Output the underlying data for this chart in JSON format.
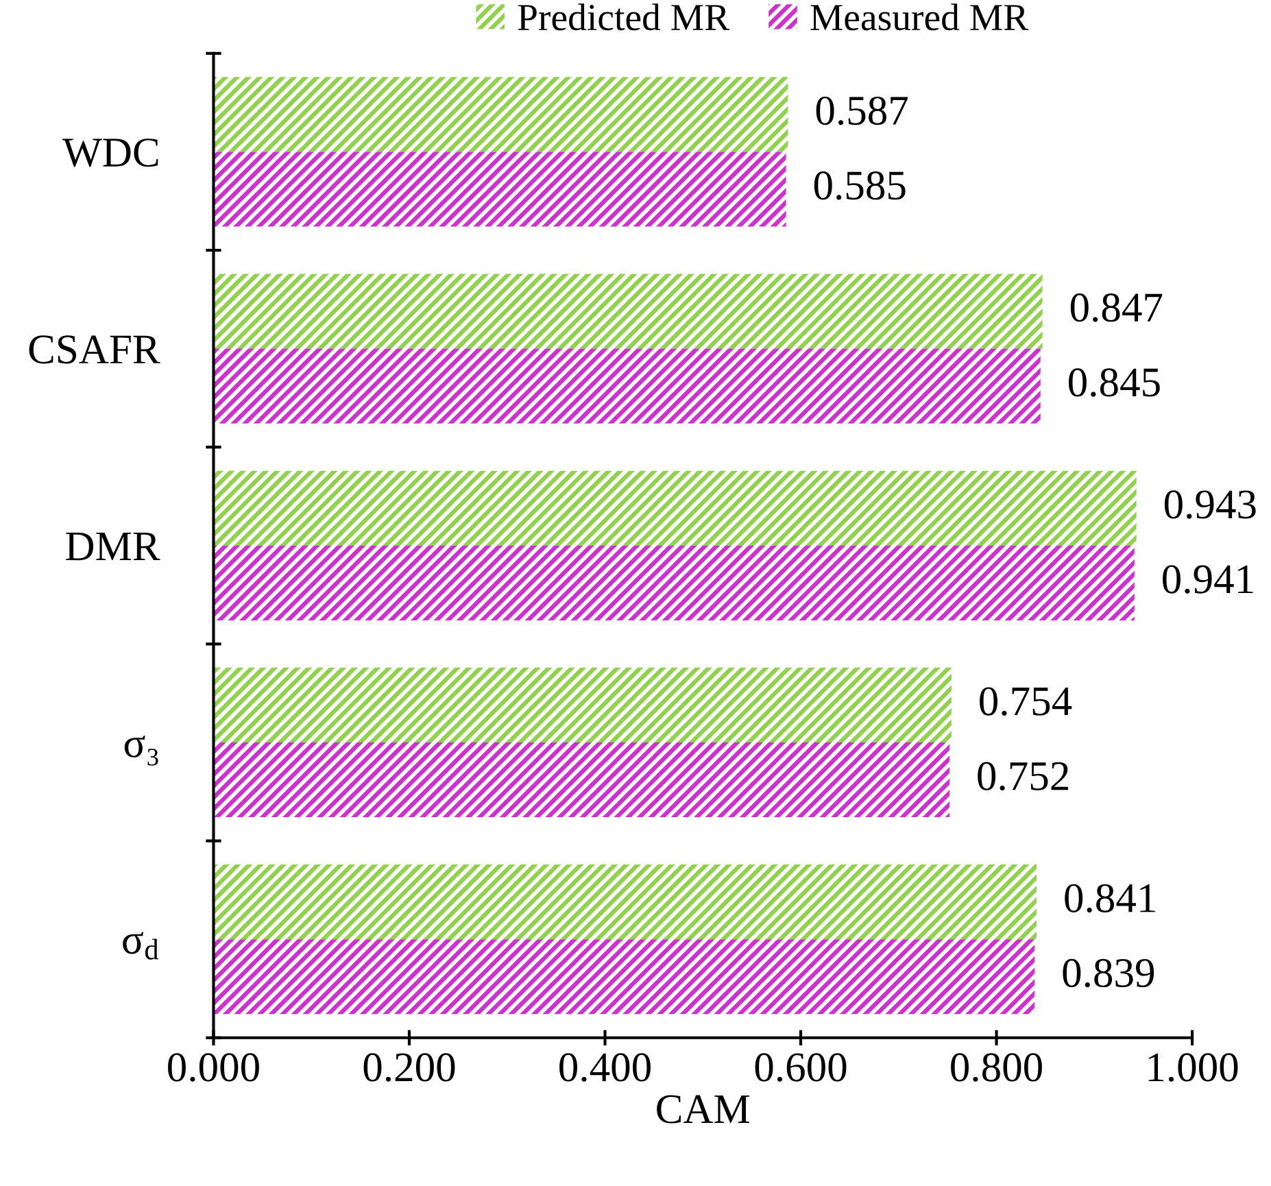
{
  "chart_data": {
    "type": "bar",
    "orientation": "horizontal",
    "xlabel": "CAM",
    "categories": [
      "WDC",
      "CSAFR",
      "DMR",
      "σ₃",
      "σ$_{d}$"
    ],
    "series": [
      {
        "name": "Predicted MR",
        "color": "#92d050",
        "values": [
          0.587,
          0.847,
          0.943,
          0.754,
          0.841
        ]
      },
      {
        "name": "Measured MR",
        "color": "#cc33cc",
        "values": [
          0.585,
          0.845,
          0.941,
          0.752,
          0.839
        ]
      }
    ],
    "xlim": [
      0,
      1
    ],
    "xticks": [
      {
        "value": 0,
        "label": "0.000"
      },
      {
        "value": 0.2,
        "label": "0.200"
      },
      {
        "value": 0.4,
        "label": "0.400"
      },
      {
        "value": 0.6,
        "label": "0.600"
      },
      {
        "value": 0.8,
        "label": "0.800"
      },
      {
        "value": 1,
        "label": "1.000"
      }
    ],
    "data_labels": true,
    "legend": "top",
    "grid": false
  }
}
